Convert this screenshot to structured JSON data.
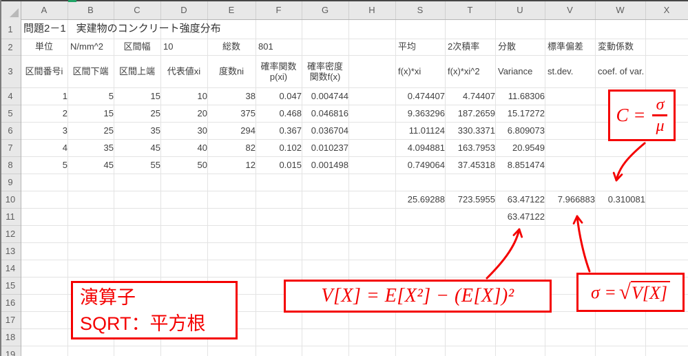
{
  "colors": {
    "annotation_red": "#f40000",
    "grid_line": "#e3e3e3",
    "header_bg": "#e8e8e8",
    "header_text": "#5e5e5e",
    "cell_text": "#404040"
  },
  "sheet": {
    "column_letters": [
      "A",
      "B",
      "C",
      "D",
      "E",
      "F",
      "G",
      "H",
      "S",
      "T",
      "U",
      "V",
      "W",
      "X"
    ],
    "row_numbers": [
      "1",
      "2",
      "3",
      "4",
      "5",
      "6",
      "7",
      "8",
      "9",
      "10",
      "11",
      "12",
      "13",
      "14",
      "15",
      "16",
      "17",
      "18",
      "19"
    ],
    "cells": [
      {
        "r": "1",
        "c": "A",
        "v": "問題2－1　実建物のコンクリート強度分布",
        "a": "l",
        "s": "title"
      },
      {
        "r": "2",
        "c": "A",
        "v": "単位",
        "a": "c"
      },
      {
        "r": "2",
        "c": "B",
        "v": "N/mm^2",
        "a": "l"
      },
      {
        "r": "2",
        "c": "C",
        "v": "区間幅",
        "a": "c"
      },
      {
        "r": "2",
        "c": "D",
        "v": "10",
        "a": "l"
      },
      {
        "r": "2",
        "c": "E",
        "v": "総数",
        "a": "c"
      },
      {
        "r": "2",
        "c": "F",
        "v": "801",
        "a": "l"
      },
      {
        "r": "2",
        "c": "S",
        "v": "平均",
        "a": "l"
      },
      {
        "r": "2",
        "c": "T",
        "v": "2次積率",
        "a": "l"
      },
      {
        "r": "2",
        "c": "U",
        "v": "分散",
        "a": "l"
      },
      {
        "r": "2",
        "c": "V",
        "v": "標準偏差",
        "a": "l"
      },
      {
        "r": "2",
        "c": "W",
        "v": "変動係数",
        "a": "l"
      },
      {
        "r": "3",
        "c": "A",
        "v": "区間番号i",
        "a": "c"
      },
      {
        "r": "3",
        "c": "B",
        "v": "区間下端",
        "a": "c"
      },
      {
        "r": "3",
        "c": "C",
        "v": "区間上端",
        "a": "c"
      },
      {
        "r": "3",
        "c": "D",
        "v": "代表値xi",
        "a": "c"
      },
      {
        "r": "3",
        "c": "E",
        "v": "度数ni",
        "a": "c"
      },
      {
        "r": "3",
        "c": "F",
        "v": "確率関数\np(xi)",
        "a": "c",
        "s": "wrap"
      },
      {
        "r": "3",
        "c": "G",
        "v": "確率密度\n関数f(x)",
        "a": "c",
        "s": "wrap"
      },
      {
        "r": "3",
        "c": "S",
        "v": "f(x)*xi",
        "a": "l"
      },
      {
        "r": "3",
        "c": "T",
        "v": "f(x)*xi^2",
        "a": "l"
      },
      {
        "r": "3",
        "c": "U",
        "v": "Variance",
        "a": "l"
      },
      {
        "r": "3",
        "c": "V",
        "v": "st.dev.",
        "a": "l"
      },
      {
        "r": "3",
        "c": "W",
        "v": "coef. of var.",
        "a": "l"
      },
      {
        "r": "4",
        "c": "A",
        "v": "1",
        "a": "r"
      },
      {
        "r": "4",
        "c": "B",
        "v": "5",
        "a": "r"
      },
      {
        "r": "4",
        "c": "C",
        "v": "15",
        "a": "r"
      },
      {
        "r": "4",
        "c": "D",
        "v": "10",
        "a": "r"
      },
      {
        "r": "4",
        "c": "E",
        "v": "38",
        "a": "r"
      },
      {
        "r": "4",
        "c": "F",
        "v": "0.047",
        "a": "r"
      },
      {
        "r": "4",
        "c": "G",
        "v": "0.004744",
        "a": "r"
      },
      {
        "r": "4",
        "c": "S",
        "v": "0.474407",
        "a": "r"
      },
      {
        "r": "4",
        "c": "T",
        "v": "4.74407",
        "a": "r"
      },
      {
        "r": "4",
        "c": "U",
        "v": "11.68306",
        "a": "r"
      },
      {
        "r": "5",
        "c": "A",
        "v": "2",
        "a": "r"
      },
      {
        "r": "5",
        "c": "B",
        "v": "15",
        "a": "r"
      },
      {
        "r": "5",
        "c": "C",
        "v": "25",
        "a": "r"
      },
      {
        "r": "5",
        "c": "D",
        "v": "20",
        "a": "r"
      },
      {
        "r": "5",
        "c": "E",
        "v": "375",
        "a": "r"
      },
      {
        "r": "5",
        "c": "F",
        "v": "0.468",
        "a": "r"
      },
      {
        "r": "5",
        "c": "G",
        "v": "0.046816",
        "a": "r"
      },
      {
        "r": "5",
        "c": "S",
        "v": "9.363296",
        "a": "r"
      },
      {
        "r": "5",
        "c": "T",
        "v": "187.2659",
        "a": "r"
      },
      {
        "r": "5",
        "c": "U",
        "v": "15.17272",
        "a": "r"
      },
      {
        "r": "6",
        "c": "A",
        "v": "3",
        "a": "r"
      },
      {
        "r": "6",
        "c": "B",
        "v": "25",
        "a": "r"
      },
      {
        "r": "6",
        "c": "C",
        "v": "35",
        "a": "r"
      },
      {
        "r": "6",
        "c": "D",
        "v": "30",
        "a": "r"
      },
      {
        "r": "6",
        "c": "E",
        "v": "294",
        "a": "r"
      },
      {
        "r": "6",
        "c": "F",
        "v": "0.367",
        "a": "r"
      },
      {
        "r": "6",
        "c": "G",
        "v": "0.036704",
        "a": "r"
      },
      {
        "r": "6",
        "c": "S",
        "v": "11.01124",
        "a": "r"
      },
      {
        "r": "6",
        "c": "T",
        "v": "330.3371",
        "a": "r"
      },
      {
        "r": "6",
        "c": "U",
        "v": "6.809073",
        "a": "r"
      },
      {
        "r": "7",
        "c": "A",
        "v": "4",
        "a": "r"
      },
      {
        "r": "7",
        "c": "B",
        "v": "35",
        "a": "r"
      },
      {
        "r": "7",
        "c": "C",
        "v": "45",
        "a": "r"
      },
      {
        "r": "7",
        "c": "D",
        "v": "40",
        "a": "r"
      },
      {
        "r": "7",
        "c": "E",
        "v": "82",
        "a": "r"
      },
      {
        "r": "7",
        "c": "F",
        "v": "0.102",
        "a": "r"
      },
      {
        "r": "7",
        "c": "G",
        "v": "0.010237",
        "a": "r"
      },
      {
        "r": "7",
        "c": "S",
        "v": "4.094881",
        "a": "r"
      },
      {
        "r": "7",
        "c": "T",
        "v": "163.7953",
        "a": "r"
      },
      {
        "r": "7",
        "c": "U",
        "v": "20.9549",
        "a": "r"
      },
      {
        "r": "8",
        "c": "A",
        "v": "5",
        "a": "r"
      },
      {
        "r": "8",
        "c": "B",
        "v": "45",
        "a": "r"
      },
      {
        "r": "8",
        "c": "C",
        "v": "55",
        "a": "r"
      },
      {
        "r": "8",
        "c": "D",
        "v": "50",
        "a": "r"
      },
      {
        "r": "8",
        "c": "E",
        "v": "12",
        "a": "r"
      },
      {
        "r": "8",
        "c": "F",
        "v": "0.015",
        "a": "r"
      },
      {
        "r": "8",
        "c": "G",
        "v": "0.001498",
        "a": "r"
      },
      {
        "r": "8",
        "c": "S",
        "v": "0.749064",
        "a": "r"
      },
      {
        "r": "8",
        "c": "T",
        "v": "37.45318",
        "a": "r"
      },
      {
        "r": "8",
        "c": "U",
        "v": "8.851474",
        "a": "r"
      },
      {
        "r": "10",
        "c": "S",
        "v": "25.69288",
        "a": "r"
      },
      {
        "r": "10",
        "c": "T",
        "v": "723.5955",
        "a": "r"
      },
      {
        "r": "10",
        "c": "U",
        "v": "63.47122",
        "a": "r"
      },
      {
        "r": "10",
        "c": "V",
        "v": "7.966883",
        "a": "r"
      },
      {
        "r": "10",
        "c": "W",
        "v": "0.310081",
        "a": "r"
      },
      {
        "r": "11",
        "c": "U",
        "v": "63.47122",
        "a": "r"
      }
    ]
  },
  "annotations": {
    "coef_formula": {
      "lhs": "C =",
      "numerator": "σ",
      "denominator": "μ"
    },
    "variance_formula": {
      "text": "V[X] = E[X²] − (E[X])²"
    },
    "sigma_formula": {
      "lhs": "σ =",
      "radical": "√",
      "radicand": "V[X]"
    },
    "operator_note": {
      "line1": "演算子",
      "line2": "SQRT：平方根"
    }
  }
}
